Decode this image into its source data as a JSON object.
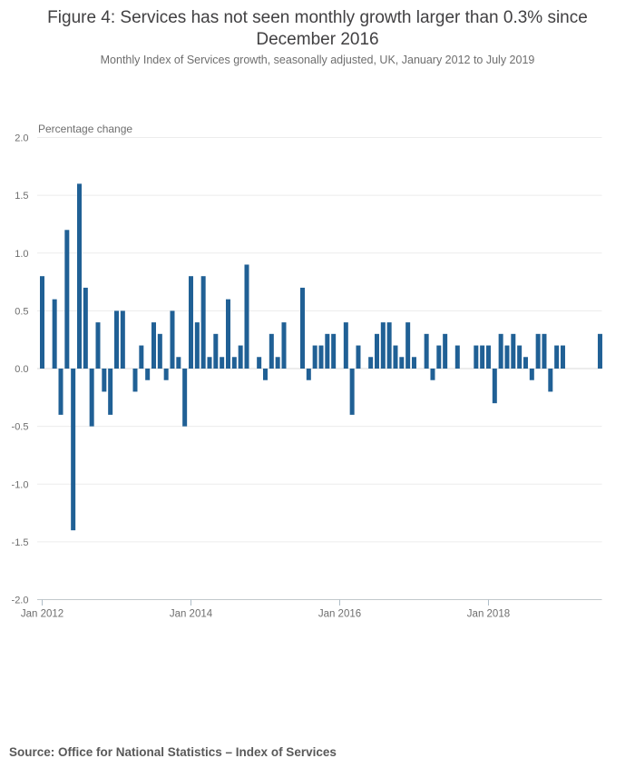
{
  "header": {
    "title": "Figure 4: Services has not seen monthly growth larger than 0.3% since December 2016",
    "subtitle": "Monthly Index of Services growth, seasonally adjusted, UK, January 2012 to July 2019"
  },
  "source": {
    "text": "Source: Office for National Statistics – Index of Services"
  },
  "colors": {
    "bar": "#206095",
    "grid": "#ececec",
    "zero_line": "#d9d9d9",
    "axis_line": "#c2c8cc",
    "tick": "#aebdc8",
    "axis_text": "#6e6e6e",
    "title_text": "#414042"
  },
  "chart_data": {
    "type": "bar",
    "title": "Figure 4: Services has not seen monthly growth larger than 0.3% since December 2016",
    "subtitle": "Monthly Index of Services growth, seasonally adjusted, UK, January 2012 to July 2019",
    "ylabel": "Percentage change",
    "xlabel": "",
    "ylim": [
      -2.0,
      2.0
    ],
    "ytick_step": 0.5,
    "ytick_labels": [
      "2.0",
      "1.5",
      "1.0",
      "0.5",
      "0.0",
      "-0.5",
      "-1.0",
      "-1.5",
      "-2.0"
    ],
    "xtick_labels": [
      "Jan 2012",
      "Jan 2014",
      "Jan 2016",
      "Jan 2018"
    ],
    "xtick_month_indices": [
      0,
      24,
      48,
      72
    ],
    "grid": true,
    "legend": false,
    "categories": [
      "Jan 2012",
      "Feb 2012",
      "Mar 2012",
      "Apr 2012",
      "May 2012",
      "Jun 2012",
      "Jul 2012",
      "Aug 2012",
      "Sep 2012",
      "Oct 2012",
      "Nov 2012",
      "Dec 2012",
      "Jan 2013",
      "Feb 2013",
      "Mar 2013",
      "Apr 2013",
      "May 2013",
      "Jun 2013",
      "Jul 2013",
      "Aug 2013",
      "Sep 2013",
      "Oct 2013",
      "Nov 2013",
      "Dec 2013",
      "Jan 2014",
      "Feb 2014",
      "Mar 2014",
      "Apr 2014",
      "May 2014",
      "Jun 2014",
      "Jul 2014",
      "Aug 2014",
      "Sep 2014",
      "Oct 2014",
      "Nov 2014",
      "Dec 2014",
      "Jan 2015",
      "Feb 2015",
      "Mar 2015",
      "Apr 2015",
      "May 2015",
      "Jun 2015",
      "Jul 2015",
      "Aug 2015",
      "Sep 2015",
      "Oct 2015",
      "Nov 2015",
      "Dec 2015",
      "Jan 2016",
      "Feb 2016",
      "Mar 2016",
      "Apr 2016",
      "May 2016",
      "Jun 2016",
      "Jul 2016",
      "Aug 2016",
      "Sep 2016",
      "Oct 2016",
      "Nov 2016",
      "Dec 2016",
      "Jan 2017",
      "Feb 2017",
      "Mar 2017",
      "Apr 2017",
      "May 2017",
      "Jun 2017",
      "Jul 2017",
      "Aug 2017",
      "Sep 2017",
      "Oct 2017",
      "Nov 2017",
      "Dec 2017",
      "Jan 2018",
      "Feb 2018",
      "Mar 2018",
      "Apr 2018",
      "May 2018",
      "Jun 2018",
      "Jul 2018",
      "Aug 2018",
      "Sep 2018",
      "Oct 2018",
      "Nov 2018",
      "Dec 2018",
      "Jan 2019",
      "Feb 2019",
      "Mar 2019",
      "Apr 2019",
      "May 2019",
      "Jun 2019",
      "Jul 2019"
    ],
    "values": [
      0.8,
      0.0,
      0.6,
      -0.4,
      1.2,
      -1.4,
      1.6,
      0.7,
      -0.5,
      0.4,
      -0.2,
      -0.4,
      0.5,
      0.5,
      0.0,
      -0.2,
      0.2,
      -0.1,
      0.4,
      0.3,
      -0.1,
      0.5,
      0.1,
      -0.5,
      0.8,
      0.4,
      0.8,
      0.1,
      0.3,
      0.1,
      0.6,
      0.1,
      0.2,
      0.9,
      0.0,
      0.1,
      -0.1,
      0.3,
      0.1,
      0.4,
      0.0,
      0.0,
      0.7,
      -0.1,
      0.2,
      0.2,
      0.3,
      0.3,
      0.0,
      0.4,
      -0.4,
      0.2,
      0.0,
      0.1,
      0.3,
      0.4,
      0.4,
      0.2,
      0.1,
      0.4,
      0.1,
      0.0,
      0.3,
      -0.1,
      0.2,
      0.3,
      0.0,
      0.2,
      0.0,
      0.0,
      0.2,
      0.2,
      0.2,
      -0.3,
      0.3,
      0.2,
      0.3,
      0.2,
      0.1,
      -0.1,
      0.3,
      0.3,
      -0.2,
      0.2,
      0.2,
      0.0,
      0.0,
      0.0,
      0.0,
      0.0,
      0.3
    ]
  }
}
